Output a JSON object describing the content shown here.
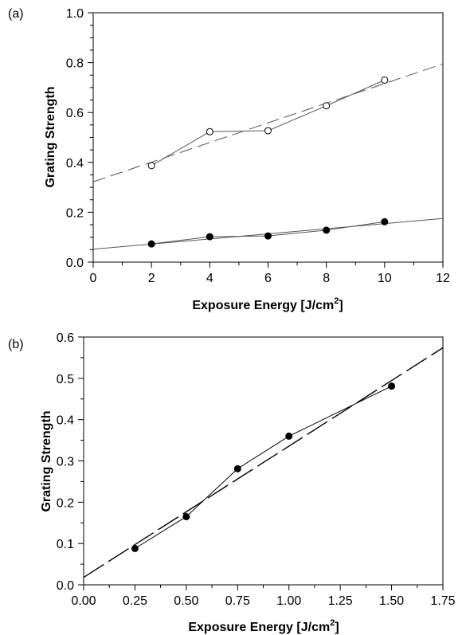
{
  "panels": [
    {
      "panel_label": "(a)",
      "xlabel_main": "Exposure Energy [J/cm",
      "xlabel_sup": "2",
      "xlabel_end": "]",
      "ylabel": "Grating Strength"
    },
    {
      "panel_label": "(b)",
      "xlabel_main": "Exposure Energy [J/cm",
      "xlabel_sup": "2",
      "xlabel_end": "]",
      "ylabel": "Grating Strength"
    }
  ],
  "chart_data": [
    {
      "type": "scatter",
      "title": "",
      "xlabel": "Exposure Energy [J/cm2]",
      "ylabel": "Grating Strength",
      "xlim": [
        0,
        12
      ],
      "ylim": [
        0,
        1.0
      ],
      "xticks": [
        "0",
        "2",
        "4",
        "6",
        "8",
        "10",
        "12"
      ],
      "yticks": [
        "0.0",
        "0.2",
        "0.4",
        "0.6",
        "0.8",
        "1.0"
      ],
      "xtick_values": [
        0,
        2,
        4,
        6,
        8,
        10,
        12
      ],
      "ytick_values": [
        0,
        0.2,
        0.4,
        0.6,
        0.8,
        1.0
      ],
      "x_minor_step": 1,
      "y_minor_step": 0.05,
      "grid": false,
      "legend": "none",
      "series": [
        {
          "marker": "open-circle",
          "connected": true,
          "x": [
            2,
            4,
            6,
            8,
            10
          ],
          "y": [
            0.387,
            0.523,
            0.527,
            0.627,
            0.73
          ]
        },
        {
          "marker": "filled-circle",
          "connected": true,
          "x": [
            2,
            4,
            6,
            8,
            10
          ],
          "y": [
            0.073,
            0.102,
            0.105,
            0.128,
            0.162
          ]
        }
      ],
      "fits": [
        {
          "style": "dashed",
          "x": [
            0,
            12
          ],
          "y": [
            0.322,
            0.795
          ]
        },
        {
          "style": "solid",
          "x": [
            0,
            12
          ],
          "y": [
            0.052,
            0.175
          ]
        }
      ]
    },
    {
      "type": "scatter",
      "title": "",
      "xlabel": "Exposure Energy [J/cm2]",
      "ylabel": "Grating Strength",
      "xlim": [
        0,
        1.75
      ],
      "ylim": [
        0,
        0.6
      ],
      "xticks": [
        "0.00",
        "0.25",
        "0.50",
        "0.75",
        "1.00",
        "1.25",
        "1.50",
        "1.75"
      ],
      "yticks": [
        "0.0",
        "0.1",
        "0.2",
        "0.3",
        "0.4",
        "0.5",
        "0.6"
      ],
      "xtick_values": [
        0,
        0.25,
        0.5,
        0.75,
        1.0,
        1.25,
        1.5,
        1.75
      ],
      "ytick_values": [
        0,
        0.1,
        0.2,
        0.3,
        0.4,
        0.5,
        0.6
      ],
      "x_minor_step": 0.125,
      "y_minor_step": 0.05,
      "grid": false,
      "legend": "none",
      "series": [
        {
          "marker": "filled-circle",
          "connected": true,
          "x": [
            0.25,
            0.5,
            0.75,
            1.0,
            1.5
          ],
          "y": [
            0.088,
            0.165,
            0.281,
            0.36,
            0.481
          ]
        }
      ],
      "fits": [
        {
          "style": "long-dashed",
          "x": [
            0,
            1.75
          ],
          "y": [
            0.018,
            0.574
          ]
        }
      ]
    }
  ]
}
